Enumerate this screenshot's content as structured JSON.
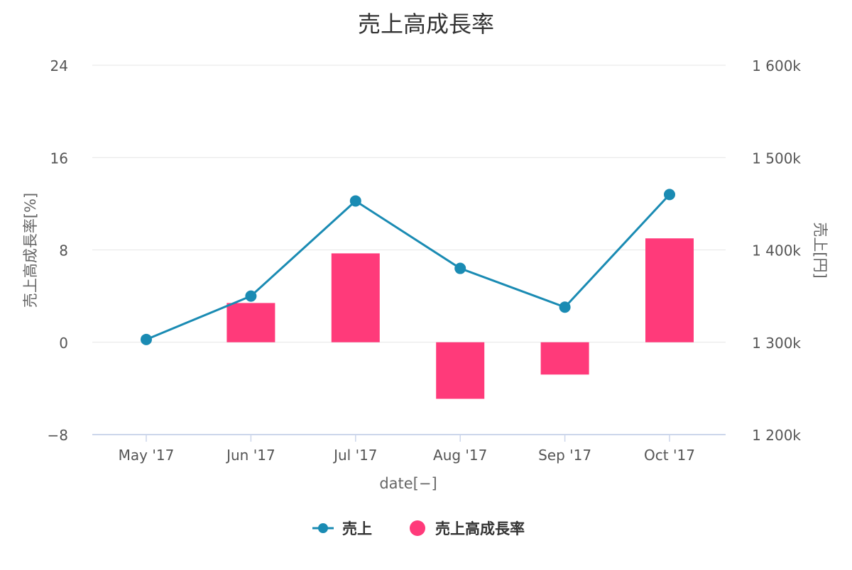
{
  "chart_data": {
    "type": "bar",
    "title": "売上高成長率",
    "xlabel": "date[−]",
    "ylabel_left": "売上高成長率[%]",
    "ylabel_right": "売上[円]",
    "categories": [
      "May '17",
      "Jun '17",
      "Jul '17",
      "Aug '17",
      "Sep '17",
      "Oct '17"
    ],
    "y_left": {
      "min": -8,
      "max": 24,
      "ticks": [
        "24",
        "16",
        "8",
        "0",
        "−8"
      ],
      "tick_values": [
        24,
        16,
        8,
        0,
        -8
      ]
    },
    "y_right": {
      "min": 1200000,
      "max": 1600000,
      "ticks": [
        "1 600k",
        "1 500k",
        "1 400k",
        "1 300k",
        "1 200k"
      ],
      "tick_values": [
        1600000,
        1500000,
        1400000,
        1300000,
        1200000
      ]
    },
    "series": [
      {
        "name": "売上",
        "type": "line",
        "axis": "right",
        "color": "#1a8bb3",
        "values": [
          1303000,
          1350000,
          1453000,
          1380000,
          1338000,
          1460000
        ]
      },
      {
        "name": "売上高成長率",
        "type": "bar",
        "axis": "left",
        "color": "#ff3a7a",
        "values": [
          null,
          3.4,
          7.7,
          -4.9,
          -2.8,
          9.0
        ]
      }
    ],
    "grid": true,
    "legend": "bottom-center"
  }
}
